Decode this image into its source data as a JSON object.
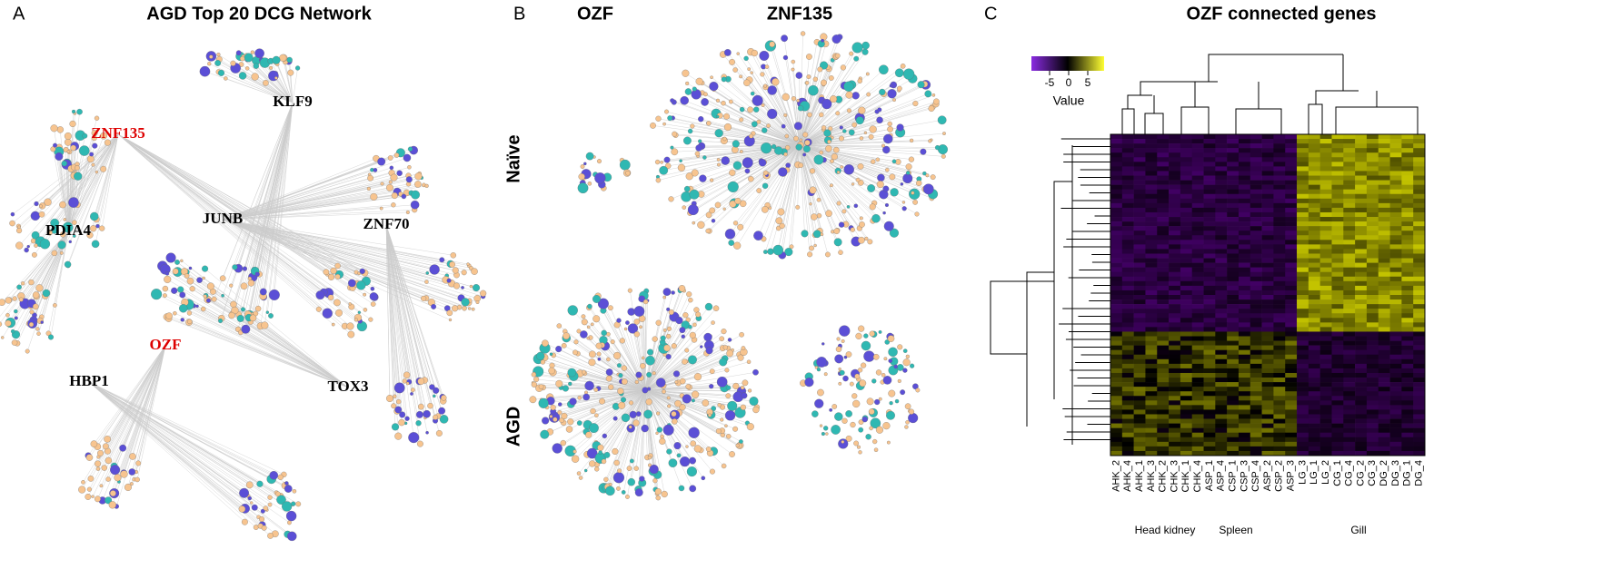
{
  "panel_a": {
    "label": "A",
    "title": "AGD Top 20 DCG Network",
    "hubs": [
      {
        "label": "KLF9"
      },
      {
        "label": "ZNF135"
      },
      {
        "label": "PDIA4"
      },
      {
        "label": "JUNB"
      },
      {
        "label": "ZNF70"
      },
      {
        "label": "OZF"
      },
      {
        "label": "HBP1"
      },
      {
        "label": "TOX3"
      }
    ]
  },
  "panel_b": {
    "label": "B",
    "col_labels": [
      "OZF",
      "ZNF135"
    ],
    "row_labels": [
      "Naïve",
      "AGD"
    ]
  },
  "panel_c": {
    "label": "C",
    "title": "OZF connected genes",
    "colorbar": {
      "ticks": [
        -5,
        0,
        5
      ],
      "label": "Value"
    },
    "columns": [
      "AHK_2",
      "AHK_4",
      "AHK_1",
      "AHK_3",
      "CHK_2",
      "CHK_3",
      "CHK_1",
      "CHK_4",
      "ASP_1",
      "ASP_4",
      "CSP_1",
      "CSP_3",
      "CSP_4",
      "ASP_2",
      "CSP_2",
      "ASP_3",
      "LG_3",
      "LG_1",
      "LG_2",
      "CG_1",
      "CG_4",
      "CG_2",
      "CG_3",
      "DG_2",
      "DG_3",
      "DG_1",
      "DG_4"
    ],
    "groups": [
      "Head kidney",
      "Spleen",
      "Gill"
    ]
  }
}
